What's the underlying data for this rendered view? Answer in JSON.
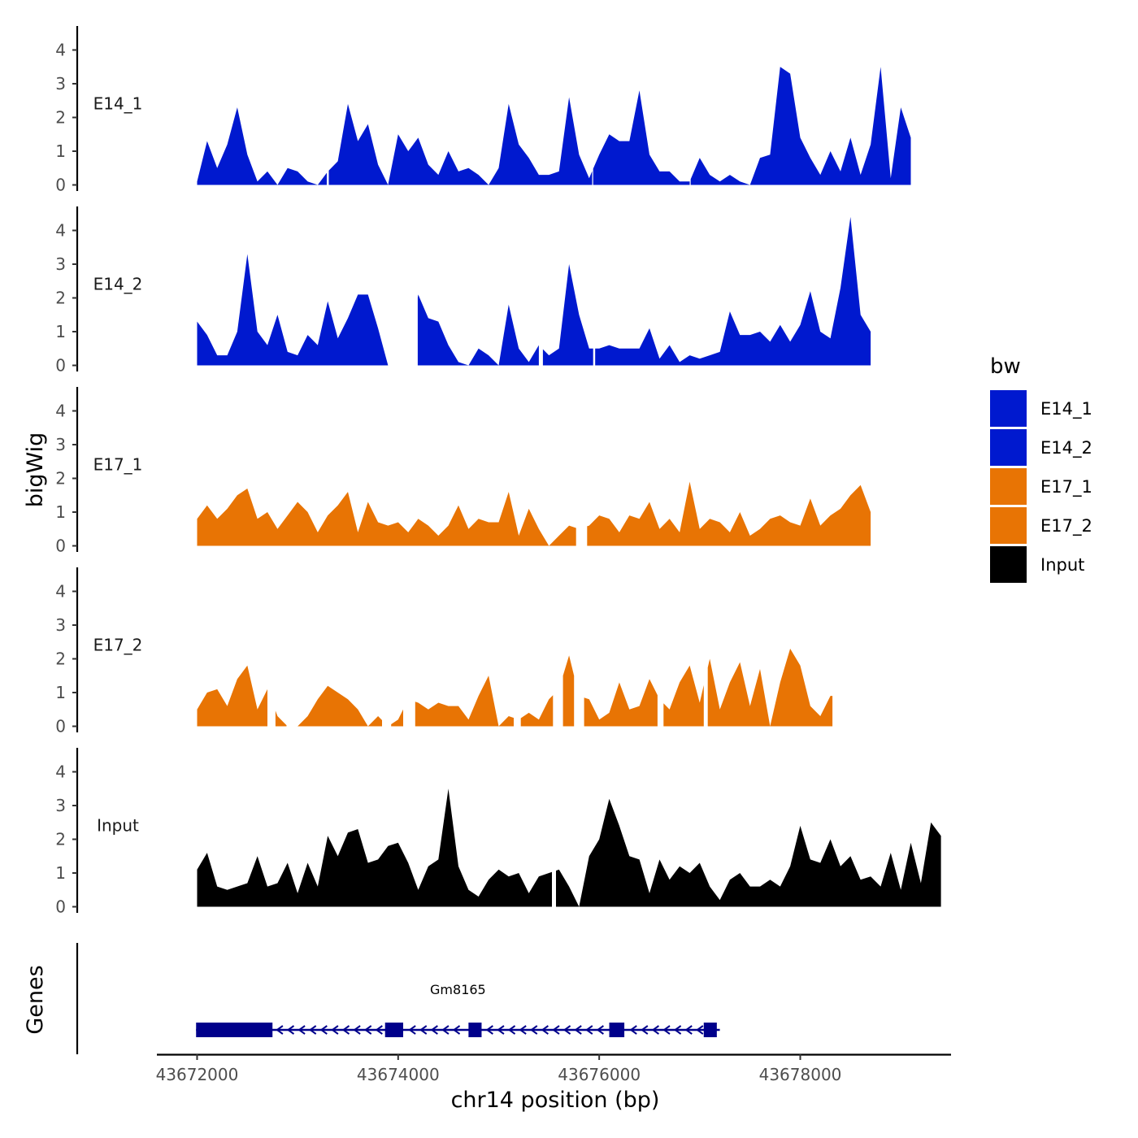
{
  "chart_data": {
    "type": "area",
    "title": "",
    "xlabel": "chr14 position (bp)",
    "ylabel": "bigWig",
    "genes_label": "Genes",
    "xlim": [
      43671600,
      43679500
    ],
    "x_ticks": [
      43672000,
      43674000,
      43676000,
      43678000
    ],
    "x_tick_labels": [
      "43672000",
      "43674000",
      "43676000",
      "43678000"
    ],
    "ylim": [
      0,
      4.6
    ],
    "y_ticks": [
      0,
      1,
      2,
      3,
      4
    ],
    "y_tick_labels": [
      "0",
      "1",
      "2",
      "3",
      "4"
    ],
    "x_start": 43672000,
    "x_step": 100,
    "legend": {
      "title": "bw",
      "entries": [
        {
          "label": "E14_1",
          "color": "#0019CF"
        },
        {
          "label": "E14_2",
          "color": "#0019CF"
        },
        {
          "label": "E17_1",
          "color": "#E87404"
        },
        {
          "label": "E17_2",
          "color": "#E87404"
        },
        {
          "label": "Input",
          "color": "#000000"
        }
      ]
    },
    "series": [
      {
        "name": "E14_1",
        "color": "#0019CF",
        "values": [
          0.1,
          1.3,
          0.5,
          1.2,
          2.3,
          0.9,
          0.1,
          0.4,
          0.0,
          0.5,
          0.4,
          0.1,
          0.0,
          0.4,
          0.7,
          2.4,
          1.3,
          1.8,
          0.6,
          0.0,
          1.5,
          1.0,
          1.4,
          0.6,
          0.3,
          1.0,
          0.4,
          0.5,
          0.3,
          0.0,
          0.5,
          2.4,
          1.2,
          0.8,
          0.3,
          0.3,
          0.4,
          2.6,
          0.9,
          0.2,
          0.9,
          1.5,
          1.3,
          1.3,
          2.8,
          0.9,
          0.4,
          0.4,
          0.1,
          0.1,
          0.8,
          0.3,
          0.1,
          0.3,
          0.1,
          0.0,
          0.8,
          0.9,
          3.5,
          3.3,
          1.4,
          0.8,
          0.3,
          1.0,
          0.4,
          1.4,
          0.3,
          1.2,
          3.5,
          0.2,
          2.3,
          1.4
        ],
        "gaps": [
          [
            43673290,
            43673310
          ],
          [
            43675930,
            43675940
          ],
          [
            43676900,
            43676910
          ]
        ]
      },
      {
        "name": "E14_2",
        "color": "#0019CF",
        "values": [
          1.3,
          0.9,
          0.3,
          0.3,
          1.0,
          3.3,
          1.0,
          0.6,
          1.5,
          0.4,
          0.3,
          0.9,
          0.6,
          1.9,
          0.8,
          1.4,
          2.1,
          2.1,
          1.1,
          0.0,
          0.0,
          0.4,
          2.1,
          1.4,
          1.3,
          0.6,
          0.1,
          0.0,
          0.5,
          0.3,
          0.0,
          1.8,
          0.5,
          0.1,
          0.6,
          0.3,
          0.5,
          3.0,
          1.5,
          0.5,
          0.5,
          0.6,
          0.5,
          0.5,
          0.5,
          1.1,
          0.2,
          0.6,
          0.1,
          0.3,
          0.2,
          0.3,
          0.4,
          1.6,
          0.9,
          0.9,
          1.0,
          0.7,
          1.2,
          0.7,
          1.2,
          2.2,
          1.0,
          0.8,
          2.3,
          4.4,
          1.5,
          1.0
        ],
        "gaps": [
          [
            43673975,
            43674195
          ],
          [
            43675400,
            43675440
          ],
          [
            43675940,
            43675960
          ]
        ]
      },
      {
        "name": "E17_1",
        "color": "#E87404",
        "values": [
          0.8,
          1.2,
          0.8,
          1.1,
          1.5,
          1.7,
          0.8,
          1.0,
          0.5,
          0.9,
          1.3,
          1.0,
          0.4,
          0.9,
          1.2,
          1.6,
          0.4,
          1.3,
          0.7,
          0.6,
          0.7,
          0.4,
          0.8,
          0.6,
          0.3,
          0.6,
          1.2,
          0.5,
          0.8,
          0.7,
          0.7,
          1.6,
          0.3,
          1.1,
          0.5,
          0.0,
          0.3,
          0.6,
          0.5,
          0.6,
          0.9,
          0.8,
          0.4,
          0.9,
          0.8,
          1.3,
          0.5,
          0.8,
          0.4,
          1.9,
          0.5,
          0.8,
          0.7,
          0.4,
          1.0,
          0.3,
          0.5,
          0.8,
          0.9,
          0.7,
          0.6,
          1.4,
          0.6,
          0.9,
          1.1,
          1.5,
          1.8,
          1.0
        ],
        "gaps": [
          [
            43675770,
            43675880
          ]
        ]
      },
      {
        "name": "E17_2",
        "color": "#E87404",
        "values": [
          0.5,
          1.0,
          1.1,
          0.6,
          1.4,
          1.8,
          0.5,
          1.1,
          0.3,
          0.0,
          0.0,
          0.3,
          0.8,
          1.2,
          1.0,
          0.8,
          0.5,
          0.0,
          0.3,
          0.0,
          0.2,
          0.8,
          0.7,
          0.5,
          0.7,
          0.6,
          0.6,
          0.2,
          0.9,
          1.5,
          0.0,
          0.3,
          0.2,
          0.4,
          0.2,
          0.8,
          1.1,
          2.1,
          0.9,
          0.8,
          0.2,
          0.4,
          1.3,
          0.5,
          0.6,
          1.4,
          0.8,
          0.5,
          1.3,
          1.8,
          0.7,
          2.0,
          0.5,
          1.3,
          1.9,
          0.6,
          1.7,
          0.0,
          1.3,
          2.3,
          1.8,
          0.6,
          0.3,
          0.9
        ],
        "gaps": [
          [
            43672700,
            43672780
          ],
          [
            43672890,
            43672950
          ],
          [
            43673840,
            43673930
          ],
          [
            43674050,
            43674170
          ],
          [
            43675150,
            43675220
          ],
          [
            43675540,
            43675640
          ],
          [
            43675750,
            43675850
          ],
          [
            43676580,
            43676640
          ],
          [
            43677040,
            43677080
          ],
          [
            43678320,
            43678380
          ]
        ]
      },
      {
        "name": "Input",
        "color": "#000000",
        "values": [
          1.1,
          1.6,
          0.6,
          0.5,
          0.6,
          0.7,
          1.5,
          0.6,
          0.7,
          1.3,
          0.4,
          1.3,
          0.6,
          2.1,
          1.5,
          2.2,
          2.3,
          1.3,
          1.4,
          1.8,
          1.9,
          1.3,
          0.5,
          1.2,
          1.4,
          3.5,
          1.2,
          0.5,
          0.3,
          0.8,
          1.1,
          0.9,
          1.0,
          0.4,
          0.9,
          1.0,
          1.1,
          0.6,
          0.0,
          1.5,
          2.0,
          3.2,
          2.4,
          1.5,
          1.4,
          0.4,
          1.4,
          0.8,
          1.2,
          1.0,
          1.3,
          0.6,
          0.2,
          0.8,
          1.0,
          0.6,
          0.6,
          0.8,
          0.6,
          1.2,
          2.4,
          1.4,
          1.3,
          2.0,
          1.2,
          1.5,
          0.8,
          0.9,
          0.6,
          1.6,
          0.5,
          1.9,
          0.7,
          2.5,
          2.1
        ],
        "gaps": [
          [
            43675530,
            43675570
          ]
        ]
      }
    ],
    "genes": [
      {
        "name": "Gm8165",
        "start": 43671990,
        "end": 43677200,
        "strand": "-",
        "color": "#00008B",
        "exons": [
          [
            43671990,
            43672750
          ],
          [
            43673870,
            43674050
          ],
          [
            43674700,
            43674830
          ],
          [
            43676100,
            43676250
          ],
          [
            43677040,
            43677170
          ]
        ]
      }
    ]
  }
}
